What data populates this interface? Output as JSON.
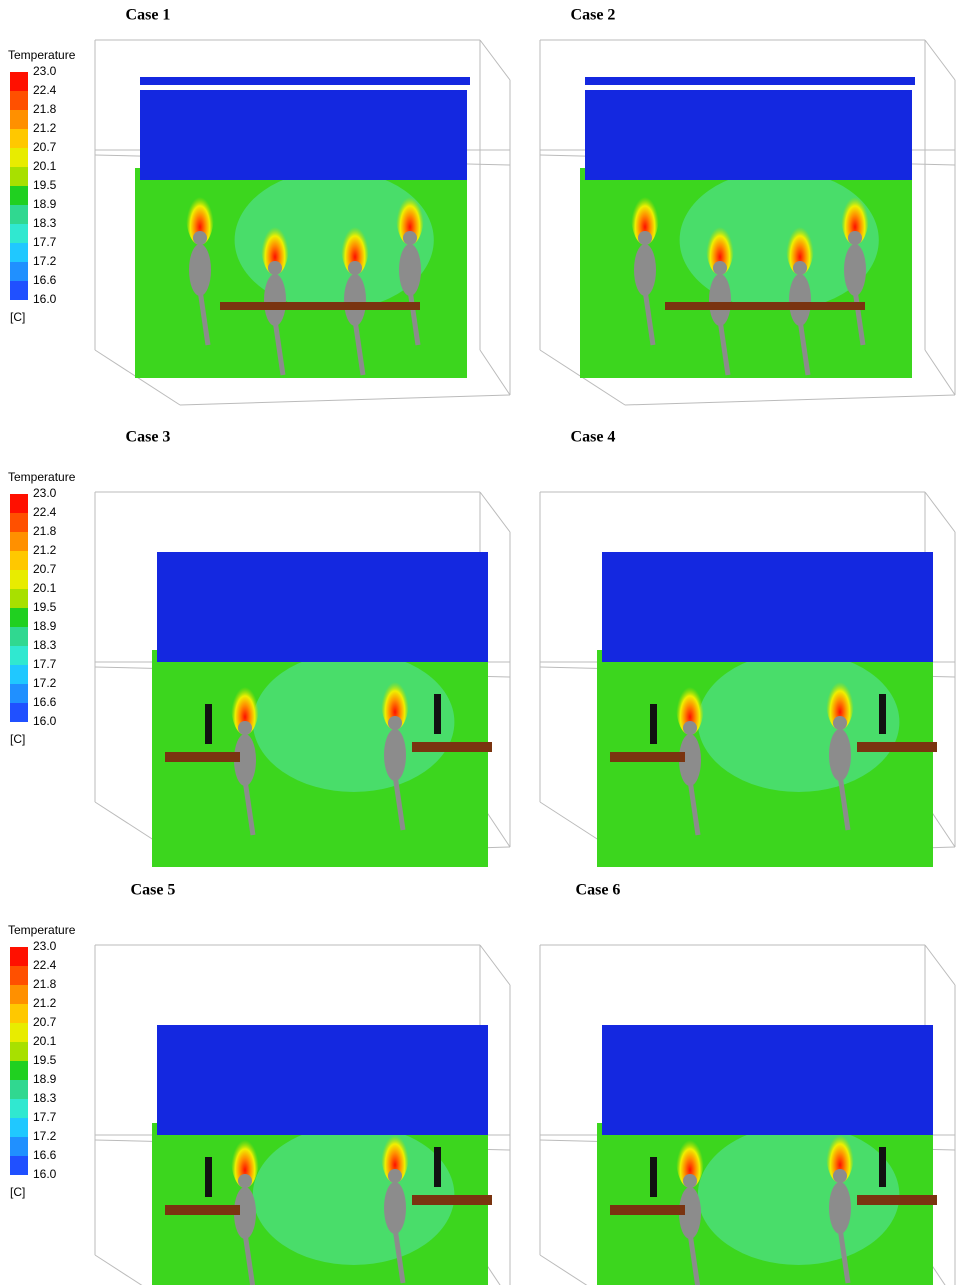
{
  "panels": [
    {
      "title": "Case 1"
    },
    {
      "title": "Case 2"
    },
    {
      "title": "Case 3"
    },
    {
      "title": "Case 4"
    },
    {
      "title": "Case 5"
    },
    {
      "title": "Case 6"
    }
  ],
  "legend": {
    "title": "Temperature",
    "labels": [
      "23.0",
      "22.4",
      "21.8",
      "21.2",
      "20.7",
      "20.1",
      "19.5",
      "18.9",
      "18.3",
      "17.7",
      "17.2",
      "16.6",
      "16.0"
    ],
    "unit": "[C]"
  }
}
